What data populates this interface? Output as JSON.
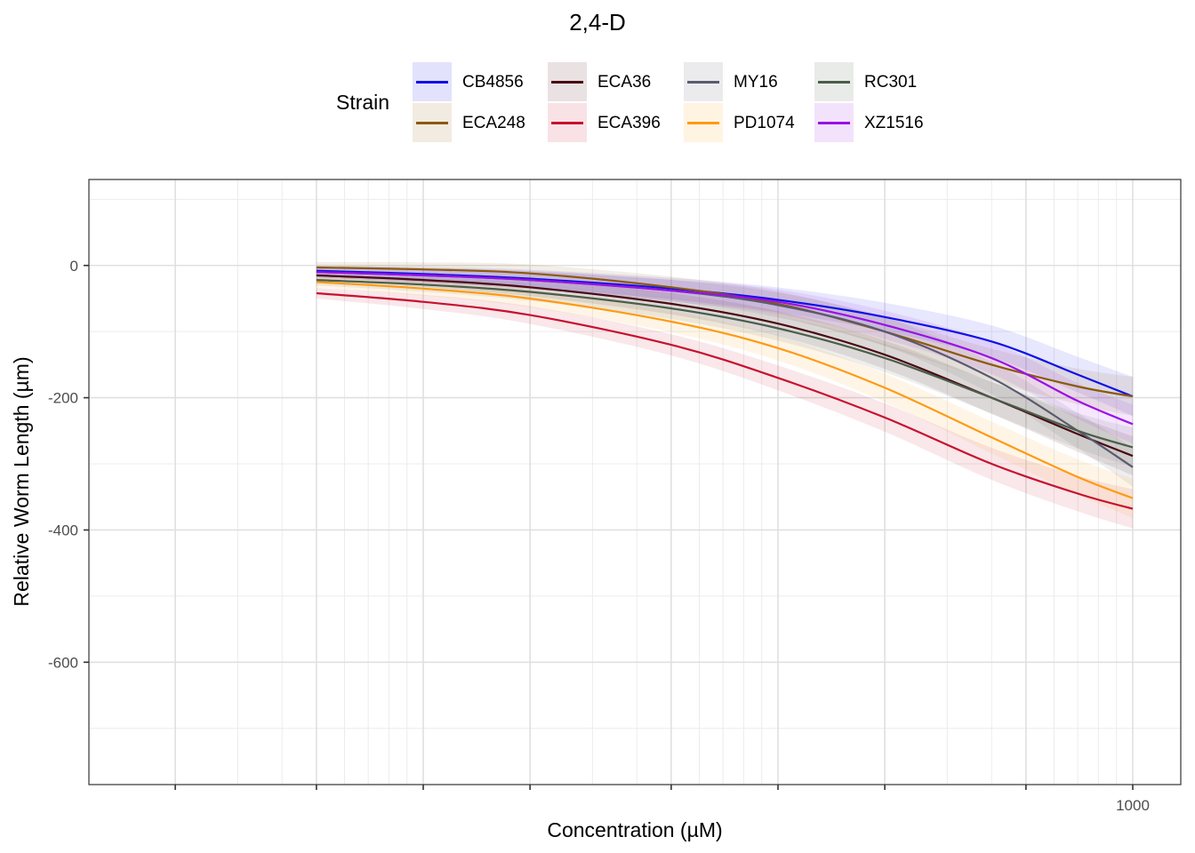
{
  "chart_data": {
    "type": "line",
    "title": "2,4-D",
    "xlabel": "Concentration (µM)",
    "ylabel": "Relative Worm Length (µm)",
    "x_scale": "log10",
    "x_ticks": [
      1000
    ],
    "x_tick_labels": [
      "1000"
    ],
    "y_ticks": [
      0,
      -200,
      -400,
      -600
    ],
    "y_tick_labels": [
      "0",
      "-200",
      "-400",
      "-600"
    ],
    "ylim": [
      -785,
      130
    ],
    "legend_title": "Strain",
    "legend_position": "top",
    "x": [
      5,
      10,
      20,
      50,
      100,
      200,
      400,
      700,
      1000
    ],
    "series": [
      {
        "name": "CB4856",
        "color": "#1010e8",
        "values": [
          -8,
          -13,
          -20,
          -35,
          -52,
          -78,
          -115,
          -165,
          -198
        ]
      },
      {
        "name": "ECA248",
        "color": "#8b5a0a",
        "values": [
          -3,
          -6,
          -12,
          -33,
          -58,
          -100,
          -150,
          -183,
          -198
        ]
      },
      {
        "name": "ECA36",
        "color": "#4a0a12",
        "values": [
          -15,
          -22,
          -33,
          -58,
          -88,
          -135,
          -200,
          -255,
          -288
        ]
      },
      {
        "name": "ECA396",
        "color": "#c8102e",
        "values": [
          -42,
          -55,
          -75,
          -120,
          -170,
          -230,
          -300,
          -345,
          -368
        ]
      },
      {
        "name": "MY16",
        "color": "#5a5a70",
        "values": [
          -10,
          -15,
          -22,
          -38,
          -60,
          -100,
          -170,
          -250,
          -305
        ]
      },
      {
        "name": "PD1074",
        "color": "#ff9a10",
        "values": [
          -25,
          -35,
          -50,
          -85,
          -125,
          -185,
          -260,
          -320,
          -352
        ]
      },
      {
        "name": "RC301",
        "color": "#4a5e4a",
        "values": [
          -22,
          -29,
          -40,
          -65,
          -95,
          -140,
          -200,
          -250,
          -275
        ]
      },
      {
        "name": "XZ1516",
        "color": "#9a10e8",
        "values": [
          -10,
          -15,
          -22,
          -38,
          -55,
          -90,
          -140,
          -205,
          -240
        ]
      }
    ]
  }
}
